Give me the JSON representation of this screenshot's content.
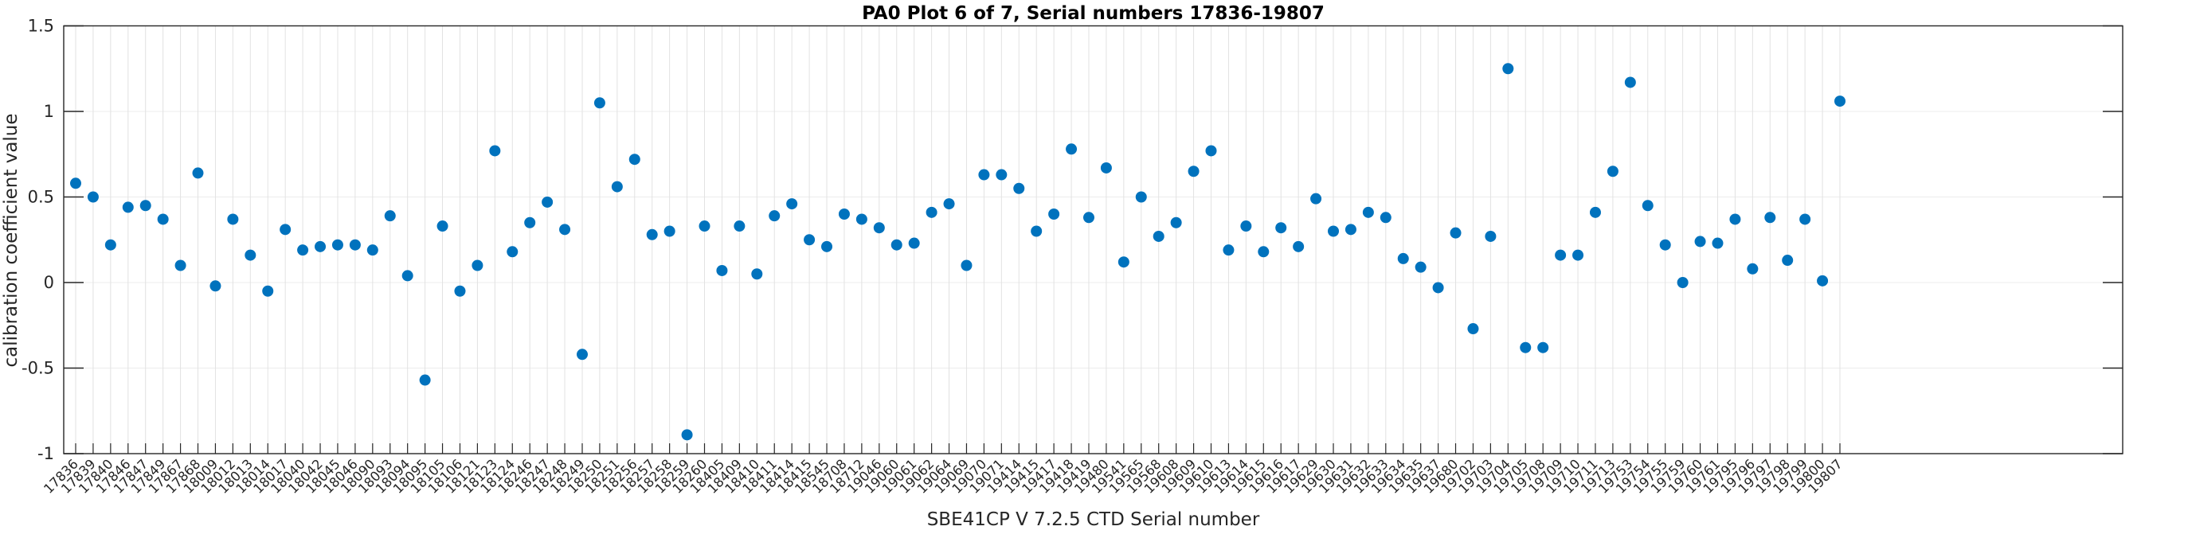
{
  "figure": {
    "title": "PA0 Plot 6 of 7, Serial numbers 17836-19807"
  },
  "chart_data": {
    "type": "scatter",
    "title": "PA0 Plot 6 of 7, Serial numbers 17836-19807",
    "xlabel": "SBE41CP V 7.2.5 CTD Serial number",
    "ylabel": "calibration coefficient value",
    "ylim": [
      -1,
      1.5
    ],
    "yticks": [
      -1,
      -0.5,
      0,
      0.5,
      1,
      1.5
    ],
    "ytick_labels": [
      "-1",
      "-0.5",
      "0",
      "0.5",
      "1",
      "1.5"
    ],
    "grid": true,
    "legend": null,
    "marker": "filled-circle",
    "marker_color": "#0072BD",
    "grid_color": "#e2e2e2",
    "axis_color": "#262626",
    "categories": [
      "17836",
      "17839",
      "17840",
      "17846",
      "17847",
      "17849",
      "17867",
      "17868",
      "18009",
      "18012",
      "18013",
      "18014",
      "18017",
      "18040",
      "18042",
      "18045",
      "18046",
      "18090",
      "18093",
      "18094",
      "18095",
      "18105",
      "18106",
      "18121",
      "18123",
      "18124",
      "18246",
      "18247",
      "18248",
      "18249",
      "18250",
      "18251",
      "18256",
      "18257",
      "18258",
      "18259",
      "18260",
      "18405",
      "18409",
      "18410",
      "18411",
      "18414",
      "18415",
      "18545",
      "18708",
      "18712",
      "19046",
      "19060",
      "19061",
      "19062",
      "19064",
      "19069",
      "19070",
      "19071",
      "19414",
      "19415",
      "19417",
      "19418",
      "19419",
      "19480",
      "19541",
      "19565",
      "19568",
      "19608",
      "19609",
      "19610",
      "19613",
      "19614",
      "19615",
      "19616",
      "19617",
      "19629",
      "19630",
      "19631",
      "19632",
      "19633",
      "19634",
      "19635",
      "19637",
      "19680",
      "19702",
      "19703",
      "19704",
      "19705",
      "19708",
      "19709",
      "19710",
      "19711",
      "19713",
      "19753",
      "19754",
      "19755",
      "19759",
      "19760",
      "19761",
      "19795",
      "19796",
      "19797",
      "19798",
      "19799",
      "19800",
      "19807"
    ],
    "values": [
      0.58,
      0.5,
      0.22,
      0.44,
      0.45,
      0.37,
      0.1,
      0.64,
      -0.02,
      0.37,
      0.16,
      -0.05,
      0.31,
      0.19,
      0.21,
      0.22,
      0.22,
      0.19,
      0.39,
      0.04,
      -0.57,
      0.33,
      -0.05,
      0.1,
      0.77,
      0.18,
      0.35,
      0.47,
      0.31,
      -0.42,
      1.05,
      0.56,
      0.72,
      0.28,
      0.3,
      -0.89,
      0.33,
      0.07,
      0.33,
      0.05,
      0.39,
      0.46,
      0.25,
      0.21,
      0.4,
      0.37,
      0.32,
      0.22,
      0.23,
      0.41,
      0.46,
      0.1,
      0.63,
      0.63,
      0.55,
      0.3,
      0.4,
      0.78,
      0.38,
      0.67,
      0.12,
      0.5,
      0.27,
      0.35,
      0.65,
      0.77,
      0.19,
      0.33,
      0.18,
      0.32,
      0.21,
      0.49,
      0.3,
      0.31,
      0.41,
      0.38,
      0.14,
      0.09,
      -0.03,
      0.29,
      -0.27,
      0.27,
      1.25,
      -0.38,
      -0.38,
      0.16,
      0.16,
      0.41,
      0.65,
      1.17,
      0.45,
      0.22,
      0.0,
      0.24,
      0.23,
      0.37,
      0.08,
      0.38,
      0.13,
      0.37,
      0.01,
      1.06
    ]
  }
}
